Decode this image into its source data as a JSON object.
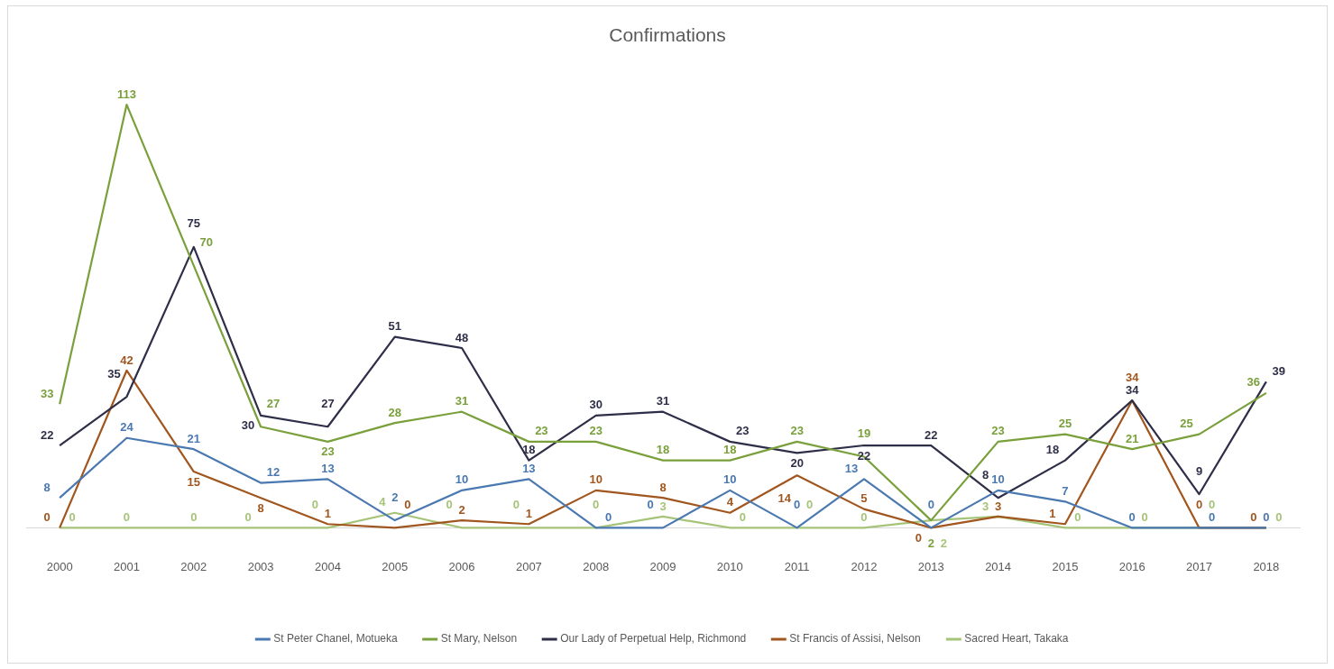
{
  "chart_data": {
    "type": "line",
    "title": "Confirmations",
    "categories": [
      "2000",
      "2001",
      "2002",
      "2003",
      "2004",
      "2005",
      "2006",
      "2007",
      "2008",
      "2009",
      "2010",
      "2011",
      "2012",
      "2013",
      "2014",
      "2015",
      "2016",
      "2017",
      "2018"
    ],
    "series": [
      {
        "name": "St Peter Chanel, Motueka",
        "color": "#4a78b0",
        "values": [
          8,
          24,
          21,
          12,
          13,
          2,
          10,
          13,
          0,
          0,
          10,
          0,
          13,
          0,
          10,
          7,
          0,
          0,
          0
        ]
      },
      {
        "name": "St Mary, Nelson",
        "color": "#7aa03c",
        "values": [
          33,
          113,
          70,
          27,
          23,
          28,
          31,
          23,
          23,
          18,
          18,
          23,
          19,
          2,
          23,
          25,
          21,
          25,
          36
        ]
      },
      {
        "name": "Our Lady of Perpetual Help, Richmond",
        "color": "#2e2e48",
        "values": [
          22,
          35,
          75,
          30,
          27,
          51,
          48,
          18,
          30,
          31,
          23,
          20,
          22,
          22,
          8,
          18,
          34,
          9,
          39
        ]
      },
      {
        "name": "St Francis of Assisi, Nelson",
        "color": "#a0561e",
        "values": [
          0,
          42,
          15,
          8,
          1,
          0,
          2,
          1,
          10,
          8,
          4,
          14,
          5,
          0,
          3,
          1,
          34,
          0,
          0
        ]
      },
      {
        "name": "Sacred Heart, Takaka",
        "color": "#a6c479",
        "values": [
          0,
          0,
          0,
          0,
          0,
          4,
          0,
          0,
          0,
          3,
          0,
          0,
          0,
          2,
          3,
          0,
          0,
          0,
          0
        ]
      }
    ],
    "tick_labels": "x",
    "data_labels": true,
    "legend": "bottom",
    "marker": "none",
    "line_style": "solid",
    "grid": false
  }
}
